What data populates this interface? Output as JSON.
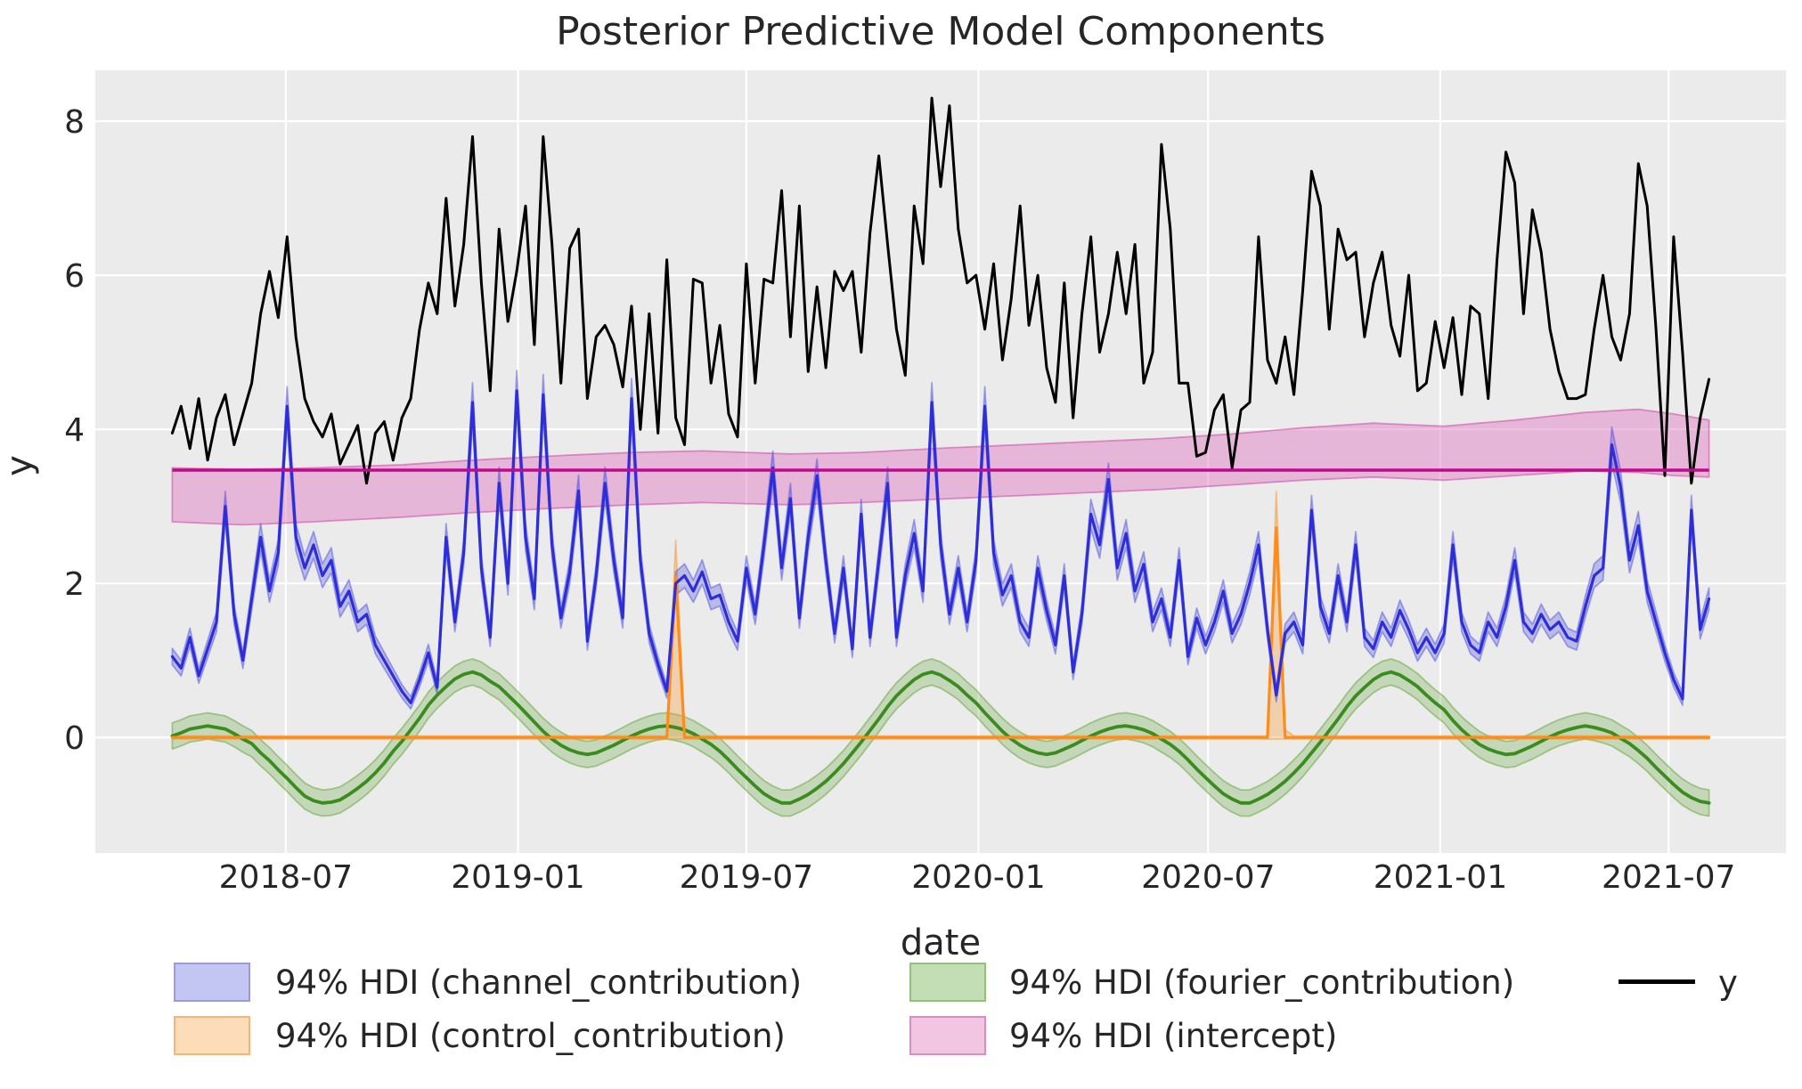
{
  "figure": {
    "title": "Posterior Predictive Model Components",
    "background": "#ffffff",
    "plot_background": "#ebebeb",
    "grid_color": "#ffffff",
    "text_color": "#262626"
  },
  "chart_data": {
    "type": "line",
    "title": "Posterior Predictive Model Components",
    "xlabel": "date",
    "ylabel": "y",
    "x_start": "2018-04-02",
    "x_step_days": 7,
    "n_points": 175,
    "x_pad_days": 61,
    "y_range": [
      -1.5,
      8.66
    ],
    "y_ticks": [
      0,
      2,
      4,
      6,
      8
    ],
    "x_ticks": [
      {
        "label": "2018-07",
        "date": "2018-07-01"
      },
      {
        "label": "2019-01",
        "date": "2019-01-01"
      },
      {
        "label": "2019-07",
        "date": "2019-07-01"
      },
      {
        "label": "2020-01",
        "date": "2020-01-01"
      },
      {
        "label": "2020-07",
        "date": "2020-07-01"
      },
      {
        "label": "2021-01",
        "date": "2021-01-01"
      },
      {
        "label": "2021-07",
        "date": "2021-07-01"
      }
    ],
    "grid": true,
    "legend_position": "bottom",
    "series": [
      {
        "name": "intercept",
        "kind": "line+band",
        "legend": "94% HDI (intercept)",
        "color": "#bf0a8f",
        "line_width": 3.6,
        "band_fill": "rgba(224,118,193,0.45)",
        "band_edge": "rgba(208,84,168,0.60)",
        "mean": 3.47,
        "band_anchors": [
          [
            0,
            2.8,
            3.5
          ],
          [
            8,
            2.76,
            3.48
          ],
          [
            16,
            2.8,
            3.5
          ],
          [
            26,
            2.86,
            3.54
          ],
          [
            34,
            2.92,
            3.6
          ],
          [
            44,
            2.98,
            3.66
          ],
          [
            52,
            3.02,
            3.7
          ],
          [
            60,
            3.05,
            3.72
          ],
          [
            70,
            3.02,
            3.68
          ],
          [
            78,
            3.05,
            3.7
          ],
          [
            88,
            3.1,
            3.76
          ],
          [
            96,
            3.14,
            3.8
          ],
          [
            104,
            3.18,
            3.84
          ],
          [
            112,
            3.22,
            3.88
          ],
          [
            120,
            3.28,
            3.94
          ],
          [
            128,
            3.34,
            4.02
          ],
          [
            136,
            3.38,
            4.08
          ],
          [
            144,
            3.34,
            4.04
          ],
          [
            152,
            3.4,
            4.12
          ],
          [
            160,
            3.46,
            4.22
          ],
          [
            166,
            3.44,
            4.26
          ],
          [
            170,
            3.4,
            4.2
          ],
          [
            174,
            3.38,
            4.12
          ]
        ]
      },
      {
        "name": "fourier_contribution",
        "kind": "line+band",
        "legend": "94% HDI (fourier_contribution)",
        "color": "#3a8c1e",
        "line_width": 3.8,
        "band_fill": "rgba(106,170,66,0.30)",
        "band_edge": "rgba(106,170,66,0.55)",
        "hdi_halfwidth": 0.17,
        "values": [
          0.02,
          0.06,
          0.11,
          0.13,
          0.15,
          0.13,
          0.11,
          0.05,
          -0.02,
          -0.08,
          -0.2,
          -0.3,
          -0.42,
          -0.53,
          -0.65,
          -0.76,
          -0.82,
          -0.85,
          -0.84,
          -0.81,
          -0.74,
          -0.66,
          -0.57,
          -0.46,
          -0.33,
          -0.18,
          -0.05,
          0.1,
          0.25,
          0.42,
          0.55,
          0.66,
          0.76,
          0.82,
          0.85,
          0.81,
          0.73,
          0.66,
          0.55,
          0.44,
          0.32,
          0.2,
          0.08,
          -0.02,
          -0.1,
          -0.16,
          -0.2,
          -0.22,
          -0.2,
          -0.15,
          -0.1,
          -0.04,
          0.02,
          0.07,
          0.11,
          0.14,
          0.15,
          0.13,
          0.1,
          0.05,
          -0.02,
          -0.09,
          -0.18,
          -0.29,
          -0.41,
          -0.52,
          -0.63,
          -0.73,
          -0.8,
          -0.85,
          -0.85,
          -0.8,
          -0.74,
          -0.66,
          -0.57,
          -0.46,
          -0.34,
          -0.2,
          -0.06,
          0.09,
          0.24,
          0.4,
          0.54,
          0.65,
          0.75,
          0.82,
          0.85,
          0.81,
          0.74,
          0.66,
          0.55,
          0.45,
          0.32,
          0.2,
          0.08,
          -0.02,
          -0.1,
          -0.16,
          -0.2,
          -0.22,
          -0.2,
          -0.15,
          -0.1,
          -0.04,
          0.02,
          0.07,
          0.11,
          0.14,
          0.15,
          0.13,
          0.1,
          0.05,
          -0.02,
          -0.09,
          -0.18,
          -0.29,
          -0.41,
          -0.52,
          -0.63,
          -0.73,
          -0.8,
          -0.85,
          -0.85,
          -0.8,
          -0.74,
          -0.66,
          -0.57,
          -0.46,
          -0.34,
          -0.2,
          -0.06,
          0.09,
          0.24,
          0.4,
          0.54,
          0.65,
          0.75,
          0.82,
          0.85,
          0.81,
          0.74,
          0.66,
          0.55,
          0.45,
          0.36,
          0.22,
          0.1,
          0.0,
          -0.09,
          -0.15,
          -0.19,
          -0.22,
          -0.21,
          -0.16,
          -0.11,
          -0.05,
          0.01,
          0.06,
          0.1,
          0.13,
          0.15,
          0.13,
          0.1,
          0.06,
          -0.01,
          -0.08,
          -0.17,
          -0.27,
          -0.39,
          -0.5,
          -0.61,
          -0.71,
          -0.78,
          -0.83,
          -0.85
        ]
      },
      {
        "name": "control_contribution",
        "kind": "line+band",
        "legend": "94% HDI (control_contribution)",
        "color": "#fd8c1c",
        "line_width": 3.2,
        "band_fill": "rgba(253,150,40,0.32)",
        "band_edge": "rgba(253,150,40,0.50)",
        "baseline": 0,
        "spikes": [
          {
            "index": 57,
            "date": "2019-05-06",
            "value": 2.08,
            "hdi_upper": 2.56
          },
          {
            "index": 125,
            "date": "2020-08-24",
            "value": 2.72,
            "hdi_upper": 3.19
          }
        ]
      },
      {
        "name": "channel_contribution",
        "kind": "line+band",
        "legend": "94% HDI (channel_contribution)",
        "color": "#2e2ed8",
        "line_width": 3.2,
        "band_fill": "rgba(72,72,221,0.30)",
        "band_edge": "rgba(72,72,221,0.45)",
        "hdi_base": 0.06,
        "hdi_factor": 0.045,
        "values": [
          1.05,
          0.9,
          1.3,
          0.8,
          1.15,
          1.5,
          3.0,
          1.6,
          1.0,
          1.8,
          2.6,
          1.9,
          2.4,
          4.3,
          2.6,
          2.2,
          2.5,
          2.1,
          2.3,
          1.7,
          1.9,
          1.5,
          1.6,
          1.2,
          1.0,
          0.8,
          0.6,
          0.45,
          0.75,
          1.1,
          0.65,
          2.6,
          1.5,
          2.4,
          4.35,
          2.2,
          1.3,
          3.3,
          2.0,
          4.5,
          2.6,
          1.8,
          4.45,
          2.5,
          1.55,
          2.15,
          3.2,
          1.25,
          2.1,
          3.3,
          2.3,
          1.55,
          4.4,
          2.3,
          1.35,
          0.95,
          0.6,
          2.0,
          2.1,
          1.9,
          2.15,
          1.8,
          1.85,
          1.5,
          1.25,
          2.2,
          1.6,
          2.5,
          3.5,
          2.2,
          3.1,
          1.55,
          2.6,
          3.4,
          2.3,
          1.35,
          2.2,
          1.15,
          2.9,
          1.3,
          2.3,
          3.3,
          1.3,
          2.1,
          2.65,
          1.9,
          4.35,
          2.5,
          1.6,
          2.2,
          1.5,
          2.3,
          4.3,
          2.4,
          1.85,
          2.1,
          1.5,
          1.3,
          2.2,
          1.65,
          1.2,
          2.1,
          0.85,
          1.6,
          2.9,
          2.5,
          3.35,
          2.2,
          2.65,
          1.9,
          2.25,
          1.5,
          1.8,
          1.3,
          2.3,
          1.05,
          1.55,
          1.2,
          1.5,
          1.9,
          1.35,
          1.6,
          2.0,
          2.5,
          1.4,
          0.55,
          1.35,
          1.5,
          1.2,
          2.95,
          1.7,
          1.35,
          2.1,
          1.5,
          2.5,
          1.3,
          1.15,
          1.5,
          1.3,
          1.65,
          1.4,
          1.1,
          1.3,
          1.1,
          1.35,
          2.5,
          1.5,
          1.2,
          1.1,
          1.5,
          1.3,
          1.7,
          2.3,
          1.5,
          1.35,
          1.6,
          1.4,
          1.5,
          1.3,
          1.25,
          1.7,
          2.1,
          2.2,
          3.8,
          3.25,
          2.3,
          2.75,
          1.9,
          1.5,
          1.1,
          0.75,
          0.5,
          2.95,
          1.4,
          1.8
        ]
      },
      {
        "name": "y",
        "kind": "line",
        "legend": "y",
        "color": "#000000",
        "line_width": 3.0,
        "values": [
          3.95,
          4.3,
          3.75,
          4.4,
          3.6,
          4.15,
          4.45,
          3.8,
          4.2,
          4.6,
          5.5,
          6.05,
          5.45,
          6.5,
          5.2,
          4.4,
          4.1,
          3.9,
          4.2,
          3.55,
          3.8,
          4.05,
          3.3,
          3.95,
          4.1,
          3.6,
          4.15,
          4.4,
          5.3,
          5.9,
          5.5,
          7.0,
          5.6,
          6.4,
          7.8,
          5.9,
          4.5,
          6.6,
          5.4,
          6.05,
          6.9,
          5.1,
          7.8,
          6.4,
          4.6,
          6.35,
          6.6,
          4.4,
          5.2,
          5.35,
          5.1,
          4.55,
          5.6,
          4.0,
          5.5,
          3.95,
          6.2,
          4.15,
          3.8,
          5.95,
          5.9,
          4.6,
          5.35,
          4.2,
          3.9,
          6.15,
          4.6,
          5.95,
          5.9,
          7.1,
          5.2,
          6.9,
          4.75,
          5.85,
          4.8,
          6.05,
          5.8,
          6.05,
          5.0,
          6.55,
          7.55,
          6.4,
          5.3,
          4.7,
          6.9,
          6.15,
          8.3,
          7.15,
          8.2,
          6.6,
          5.9,
          6.0,
          5.3,
          6.15,
          4.9,
          5.7,
          6.9,
          5.35,
          6.0,
          4.8,
          4.35,
          5.9,
          4.15,
          5.5,
          6.5,
          5.0,
          5.5,
          6.3,
          5.5,
          6.4,
          4.6,
          5.0,
          7.7,
          6.6,
          4.6,
          4.6,
          3.65,
          3.7,
          4.25,
          4.45,
          3.5,
          4.25,
          4.35,
          6.5,
          4.9,
          4.6,
          5.2,
          4.45,
          5.8,
          7.35,
          6.9,
          5.3,
          6.6,
          6.2,
          6.3,
          5.2,
          5.9,
          6.3,
          5.35,
          4.95,
          6.0,
          4.5,
          4.6,
          5.4,
          4.8,
          5.45,
          4.45,
          5.6,
          5.5,
          4.4,
          6.2,
          7.6,
          7.2,
          5.5,
          6.85,
          6.3,
          5.3,
          4.75,
          4.4,
          4.4,
          4.45,
          5.3,
          6.0,
          5.2,
          4.9,
          5.5,
          7.45,
          6.9,
          5.3,
          3.4,
          6.5,
          5.0,
          3.3,
          4.15,
          4.65
        ]
      }
    ],
    "legend": [
      {
        "label": "94% HDI (channel_contribution)",
        "fill": "#c3c6f2",
        "edge": "#9a9ae0"
      },
      {
        "label": "94% HDI (control_contribution)",
        "fill": "#fddcba",
        "edge": "#f9b475"
      },
      {
        "label": "94% HDI (fourier_contribution)",
        "fill": "#c3ddb4",
        "edge": "#90c278"
      },
      {
        "label": "94% HDI (intercept)",
        "fill": "#f2c6e3",
        "edge": "#dd8bc4"
      },
      {
        "label": "y",
        "line_color": "#000000"
      }
    ]
  }
}
